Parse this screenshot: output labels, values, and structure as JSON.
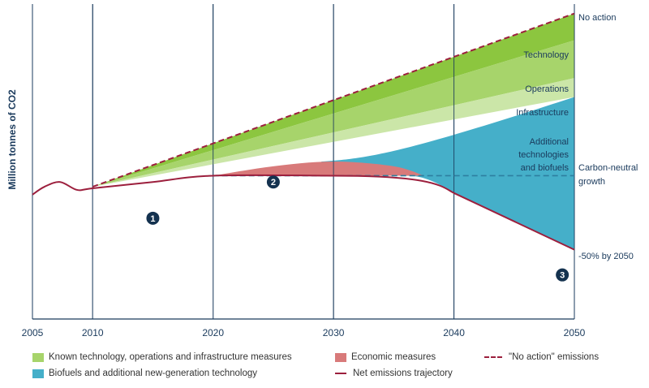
{
  "chart_data": {
    "type": "area",
    "ylabel": "Million tonnes of CO2",
    "xlabel": "",
    "x_ticks": [
      "2005",
      "2010",
      "2020",
      "2030",
      "2040",
      "2050"
    ],
    "xlim": [
      2005,
      2050
    ],
    "ylim": [
      0,
      100
    ],
    "y_ticks_shown": false,
    "grid": "vertical lines at labelled years",
    "series": [
      {
        "name": "\"No action\" emissions",
        "style": "dashed",
        "color": "#9c1f3d",
        "x": [
          2010,
          2050
        ],
        "values": [
          42,
          97
        ]
      },
      {
        "name": "Net emissions trajectory",
        "style": "solid",
        "color": "#9c1f3d",
        "x": [
          2005,
          2006,
          2007.3,
          2008.7,
          2010,
          2015,
          2020,
          2030,
          2037,
          2040,
          2050
        ],
        "values": [
          39.5,
          42,
          43.5,
          41,
          41.5,
          43.5,
          45.5,
          45.5,
          45.5,
          40,
          22
        ]
      },
      {
        "name": "Carbon-neutral growth",
        "style": "dashed",
        "color": "#2d7fa0",
        "x": [
          2020,
          2050
        ],
        "values": [
          45.5,
          45.5
        ]
      }
    ],
    "areas": [
      {
        "label": "Technology",
        "color": "#8cc63f",
        "x": [
          2010,
          2050
        ],
        "upper": [
          42,
          97
        ],
        "lower": [
          42,
          88.5
        ]
      },
      {
        "label": "Operations",
        "color": "#a7d46b",
        "x": [
          2010,
          2050
        ],
        "upper": [
          42,
          88.5
        ],
        "lower": [
          42,
          76.5
        ]
      },
      {
        "label": "Infrastructure",
        "color": "#cbe6a8",
        "x": [
          2010,
          2050
        ],
        "upper": [
          42,
          76.5
        ],
        "lower": [
          42,
          70.5
        ]
      },
      {
        "label": "Additional technologies and biofuels",
        "color": "#45afc9",
        "x": [
          2030,
          2040,
          2050
        ],
        "upper": [
          50,
          60,
          70.5
        ],
        "lower": [
          45.5,
          40,
          22
        ]
      },
      {
        "label": "Economic measures",
        "color": "#d87a7a",
        "x": [
          2020,
          2025,
          2030,
          2035,
          2037.5
        ],
        "upper": [
          45.5,
          48.5,
          50,
          48.5,
          45.5
        ],
        "lower": [
          45.5,
          45.5,
          45.5,
          45.5,
          45.5
        ]
      }
    ],
    "end_labels": [
      "No action",
      "Carbon-neutral growth",
      "-50% by 2050"
    ],
    "markers": [
      {
        "label": "1",
        "x": 2015,
        "y": 32
      },
      {
        "label": "2",
        "x": 2025,
        "y": 43.5
      },
      {
        "label": "3",
        "x": 2049,
        "y": 14
      }
    ],
    "legend": [
      {
        "label": "Known technology, operations and infrastructure measures",
        "kind": "swatch",
        "color": "#a7d46b"
      },
      {
        "label": "Biofuels and additional new-generation technology",
        "kind": "swatch",
        "color": "#45afc9"
      },
      {
        "label": "Economic measures",
        "kind": "swatch",
        "color": "#d87a7a"
      },
      {
        "label": "Net emissions trajectory",
        "kind": "line",
        "color": "#9c1f3d"
      },
      {
        "label": "\"No action\" emissions",
        "kind": "dashed",
        "color": "#9c1f3d"
      }
    ],
    "legend_position": "bottom"
  },
  "labels": {
    "no_action": "No action",
    "technology": "Technology",
    "operations": "Operations",
    "infrastructure": "Infrastructure",
    "additional_1": "Additional",
    "additional_2": "technologies",
    "additional_3": "and biofuels",
    "carbon_neutral_1": "Carbon-neutral",
    "carbon_neutral_2": "growth",
    "minus50": "-50% by 2050"
  }
}
